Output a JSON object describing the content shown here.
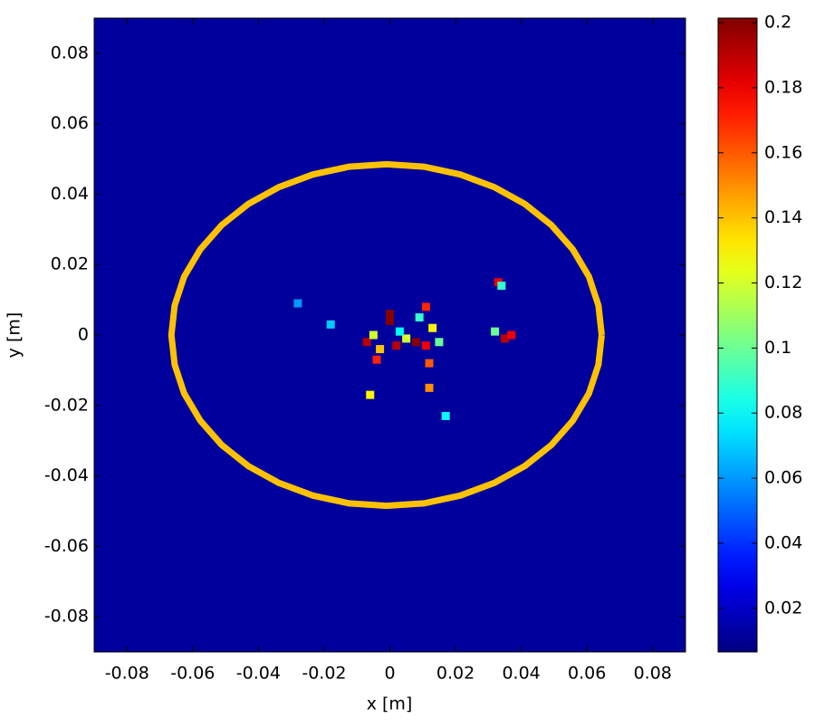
{
  "chart_data": {
    "type": "heatmap",
    "colormap": "jet",
    "xlabel": "x [m]",
    "ylabel": "y [m]",
    "xlim": [
      -0.09,
      0.09
    ],
    "ylim": [
      -0.09,
      0.09
    ],
    "xticks": [
      -0.08,
      -0.06,
      -0.04,
      -0.02,
      0,
      0.02,
      0.04,
      0.06,
      0.08
    ],
    "yticks": [
      -0.08,
      -0.06,
      -0.04,
      -0.02,
      0,
      0.02,
      0.04,
      0.06,
      0.08
    ],
    "clim": [
      0.0066,
      0.2014
    ],
    "cticks": [
      0.02,
      0.04,
      0.06,
      0.08,
      0.1,
      0.12,
      0.14,
      0.16,
      0.18,
      0.2
    ],
    "background": 0.012,
    "cells": {
      "x": [
        0,
        0,
        0.002,
        0.005,
        0.008,
        0.011,
        0.013,
        0.009,
        0.011,
        0.012,
        0.012,
        -0.007,
        -0.005,
        -0.003,
        -0.004,
        -0.006,
        0.035,
        0.037,
        0.032,
        0.033,
        0.034,
        0.017,
        -0.018,
        -0.028,
        0.015,
        0.003
      ],
      "y": [
        0.006,
        0.004,
        -0.003,
        -0.001,
        -0.002,
        -0.003,
        0.002,
        0.005,
        0.008,
        -0.008,
        -0.015,
        -0.002,
        0,
        -0.004,
        -0.007,
        -0.017,
        -0.001,
        0,
        0.001,
        0.015,
        0.014,
        -0.023,
        0.003,
        0.009,
        -0.002,
        0.001
      ],
      "values": [
        0.2,
        0.2,
        0.19,
        0.12,
        0.2,
        0.18,
        0.13,
        0.09,
        0.17,
        0.16,
        0.15,
        0.19,
        0.12,
        0.14,
        0.17,
        0.13,
        0.19,
        0.18,
        0.1,
        0.18,
        0.09,
        0.08,
        0.07,
        0.06,
        0.1,
        0.08
      ]
    },
    "contours": [
      {
        "value": 0.14,
        "x": [
          0.0645,
          0.0635,
          0.0606,
          0.0557,
          0.0492,
          0.0411,
          0.0318,
          0.0214,
          0.0104,
          -0.001,
          -0.0124,
          -0.0234,
          -0.0338,
          -0.0431,
          -0.0512,
          -0.0577,
          -0.0626,
          -0.0655,
          -0.0665,
          -0.0655,
          -0.0626,
          -0.0577,
          -0.0512,
          -0.0431,
          -0.0338,
          -0.0234,
          -0.0124,
          -0.001,
          0.0104,
          0.0214,
          0.0318,
          0.0411,
          0.0492,
          0.0557,
          0.0606,
          0.0635,
          0.0645
        ],
        "y": [
          0,
          0.0084,
          0.0166,
          0.0243,
          0.0312,
          0.0372,
          0.042,
          0.0456,
          0.0478,
          0.0485,
          0.0478,
          0.0456,
          0.042,
          0.0372,
          0.0312,
          0.0243,
          0.0166,
          0.0084,
          0,
          -0.0084,
          -0.0166,
          -0.0243,
          -0.0312,
          -0.0372,
          -0.042,
          -0.0456,
          -0.0478,
          -0.0485,
          -0.0478,
          -0.0456,
          -0.042,
          -0.0372,
          -0.0312,
          -0.0243,
          -0.0166,
          -0.0084,
          0
        ]
      }
    ]
  }
}
